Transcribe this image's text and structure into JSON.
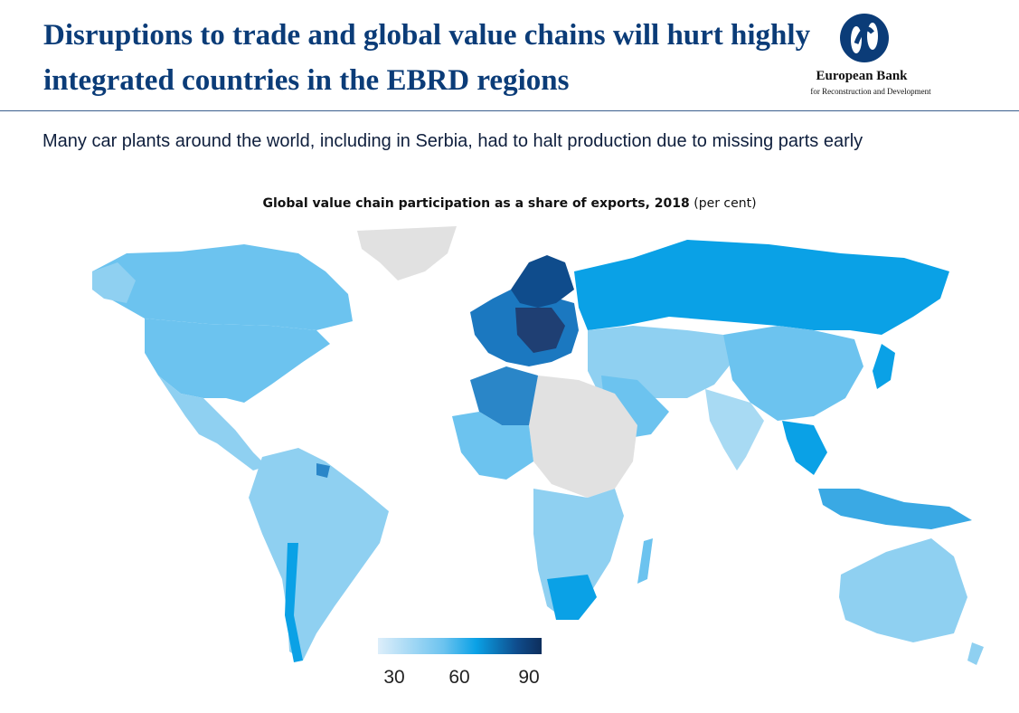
{
  "header": {
    "title": "Disruptions to trade and global value chains will hurt highly integrated countries in the EBRD regions",
    "subtitle": "Many car plants around the world, including in Serbia, had to halt production due to missing parts early"
  },
  "logo": {
    "name": "European Bank",
    "subline": "for Reconstruction and Development"
  },
  "map": {
    "title_bold": "Global value chain participation as a share of exports, 2018",
    "title_unit": "(per cent)",
    "colors": {
      "low": "#ddeefa",
      "mid": "#0aa1e6",
      "high": "#0d2e5c",
      "no_data": "#e1e1e1"
    },
    "legend": {
      "ticks": [
        "30",
        "60",
        "90"
      ],
      "min": 30,
      "max": 90
    }
  }
}
